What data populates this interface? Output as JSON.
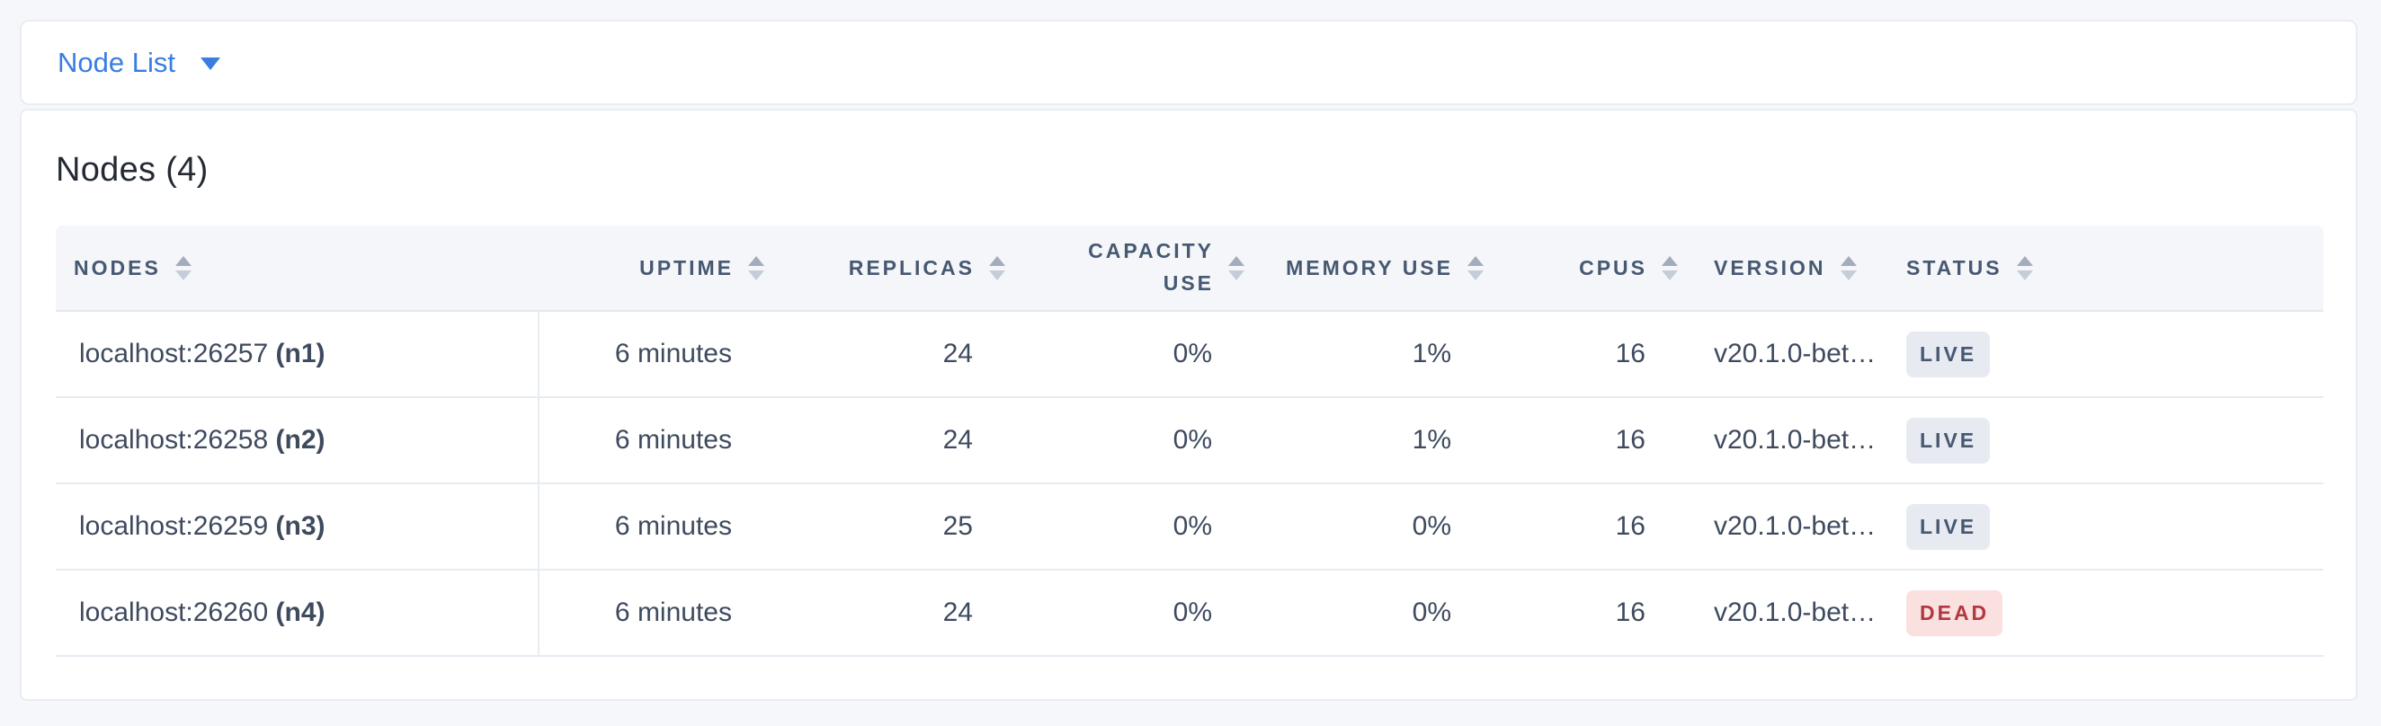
{
  "view_selector": {
    "label": "Node List"
  },
  "section": {
    "title": "Nodes (4)"
  },
  "table": {
    "columns": [
      {
        "key": "nodes",
        "label": "Nodes"
      },
      {
        "key": "uptime",
        "label": "Uptime"
      },
      {
        "key": "replicas",
        "label": "Replicas"
      },
      {
        "key": "capacity_use",
        "label": "Capacity Use"
      },
      {
        "key": "memory_use",
        "label": "Memory Use"
      },
      {
        "key": "cpus",
        "label": "CPUs"
      },
      {
        "key": "version",
        "label": "Version"
      },
      {
        "key": "status",
        "label": "Status"
      }
    ],
    "rows": [
      {
        "node_address": "localhost:26257",
        "node_id": "(n1)",
        "uptime": "6 minutes",
        "replicas": "24",
        "capacity_use": "0%",
        "memory_use": "1%",
        "cpus": "16",
        "version": "v20.1.0-bet…",
        "status": "LIVE"
      },
      {
        "node_address": "localhost:26258",
        "node_id": "(n2)",
        "uptime": "6 minutes",
        "replicas": "24",
        "capacity_use": "0%",
        "memory_use": "1%",
        "cpus": "16",
        "version": "v20.1.0-bet…",
        "status": "LIVE"
      },
      {
        "node_address": "localhost:26259",
        "node_id": "(n3)",
        "uptime": "6 minutes",
        "replicas": "25",
        "capacity_use": "0%",
        "memory_use": "0%",
        "cpus": "16",
        "version": "v20.1.0-bet…",
        "status": "LIVE"
      },
      {
        "node_address": "localhost:26260",
        "node_id": "(n4)",
        "uptime": "6 minutes",
        "replicas": "24",
        "capacity_use": "0%",
        "memory_use": "0%",
        "cpus": "16",
        "version": "v20.1.0-bet…",
        "status": "DEAD"
      }
    ]
  },
  "colors": {
    "accent_blue": "#3a7de1",
    "page_background": "#f5f7fa",
    "header_text": "#475872",
    "cell_text": "#3e4a5e",
    "live_badge_bg": "#e7eaf1",
    "live_badge_text": "#475872",
    "dead_badge_bg": "#fbe0e0",
    "dead_badge_text": "#b2383f"
  }
}
